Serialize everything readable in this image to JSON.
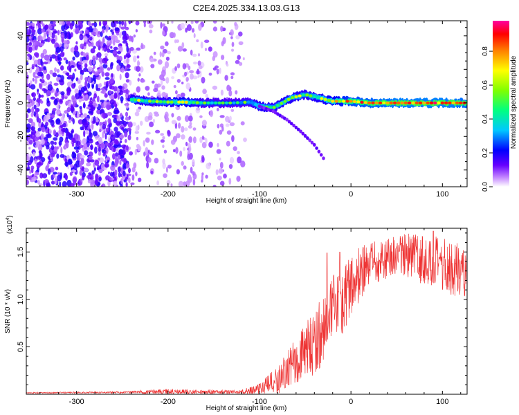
{
  "title": "C2E4.2025.334.13.03.G13",
  "chart_data": [
    {
      "type": "heatmap",
      "xlabel": "Height of straight line (km)",
      "ylabel": "Frequency (Hz)",
      "xlim": [
        -355,
        127
      ],
      "ylim": [
        -50,
        49
      ],
      "xticks": [
        -300,
        -200,
        -100,
        0,
        100
      ],
      "yticks": [
        -40,
        -20,
        0,
        20,
        40
      ],
      "colorbar": {
        "label": "Normalized spectral amplitude",
        "range": [
          0,
          0.98
        ],
        "ticks": [
          0.0,
          0.2,
          0.4,
          0.6,
          0.8
        ],
        "tick_labels": [
          "0.0",
          "0.2",
          "0.4",
          "0.6",
          "0.8"
        ],
        "colors": [
          "#ffffff",
          "#c080ff",
          "#6600ff",
          "#0000ff",
          "#00c8ff",
          "#00ff80",
          "#80ff00",
          "#ffff00",
          "#ff8000",
          "#ff0000",
          "#ff00a0"
        ]
      },
      "noise_region_x": [
        -355,
        -115
      ],
      "ridge": [
        {
          "x": -240,
          "freq": 2,
          "amp": 0.55
        },
        {
          "x": -220,
          "freq": 1,
          "amp": 0.5
        },
        {
          "x": -200,
          "freq": 0.5,
          "amp": 0.5
        },
        {
          "x": -185,
          "freq": 0.5,
          "amp": 0.6
        },
        {
          "x": -160,
          "freq": 0,
          "amp": 0.45
        },
        {
          "x": -130,
          "freq": 0,
          "amp": 0.4
        },
        {
          "x": -110,
          "freq": 0.5,
          "amp": 0.45
        },
        {
          "x": -100,
          "freq": -2,
          "amp": 0.55
        },
        {
          "x": -85,
          "freq": -3,
          "amp": 0.5
        },
        {
          "x": -75,
          "freq": 0,
          "amp": 0.55
        },
        {
          "x": -65,
          "freq": 3,
          "amp": 0.55
        },
        {
          "x": -50,
          "freq": 5,
          "amp": 0.5
        },
        {
          "x": -35,
          "freq": 3,
          "amp": 0.55
        },
        {
          "x": -20,
          "freq": 1,
          "amp": 0.6
        },
        {
          "x": 0,
          "freq": 1,
          "amp": 0.75
        },
        {
          "x": 20,
          "freq": 0,
          "amp": 0.8
        },
        {
          "x": 50,
          "freq": 0,
          "amp": 0.85
        },
        {
          "x": 80,
          "freq": 0,
          "amp": 0.85
        },
        {
          "x": 110,
          "freq": 0,
          "amp": 0.85
        },
        {
          "x": 127,
          "freq": 0,
          "amp": 0.8
        }
      ],
      "branch": [
        {
          "x": -100,
          "freq": -2
        },
        {
          "x": -85,
          "freq": -5
        },
        {
          "x": -70,
          "freq": -10
        },
        {
          "x": -55,
          "freq": -17
        },
        {
          "x": -40,
          "freq": -25
        },
        {
          "x": -30,
          "freq": -33
        }
      ]
    },
    {
      "type": "line",
      "xlabel": "Height of straight line (km)",
      "ylabel": "SNR (10 * v/v)",
      "scale_label": "(x10",
      "scale_exponent": "4",
      "scale_suffix": ")",
      "xlim": [
        -355,
        127
      ],
      "ylim": [
        0,
        17500
      ],
      "xticks": [
        -300,
        -200,
        -100,
        0,
        100
      ],
      "yticks": [
        5000,
        10000,
        15000
      ],
      "ytick_labels": [
        "0.5",
        "1.0",
        "1.5"
      ],
      "color": "#ee3333",
      "envelope": [
        {
          "x": -355,
          "mean": 150,
          "spread": 50
        },
        {
          "x": -250,
          "mean": 200,
          "spread": 100
        },
        {
          "x": -200,
          "mean": 300,
          "spread": 300
        },
        {
          "x": -180,
          "mean": 250,
          "spread": 250
        },
        {
          "x": -120,
          "mean": 250,
          "spread": 200
        },
        {
          "x": -100,
          "mean": 600,
          "spread": 600
        },
        {
          "x": -80,
          "mean": 1500,
          "spread": 1500
        },
        {
          "x": -60,
          "mean": 3500,
          "spread": 2500
        },
        {
          "x": -40,
          "mean": 5500,
          "spread": 3500
        },
        {
          "x": -20,
          "mean": 8500,
          "spread": 4000
        },
        {
          "x": 0,
          "mean": 11500,
          "spread": 3500
        },
        {
          "x": 20,
          "mean": 13500,
          "spread": 2500
        },
        {
          "x": 50,
          "mean": 14800,
          "spread": 2000
        },
        {
          "x": 70,
          "mean": 14500,
          "spread": 2500
        },
        {
          "x": 100,
          "mean": 13500,
          "spread": 3000
        },
        {
          "x": 127,
          "mean": 13000,
          "spread": 3000
        }
      ],
      "peaks": [
        {
          "x": -26,
          "y": 14900
        },
        {
          "x": -12,
          "y": 15000
        },
        {
          "x": 90,
          "y": 17200
        }
      ]
    }
  ]
}
